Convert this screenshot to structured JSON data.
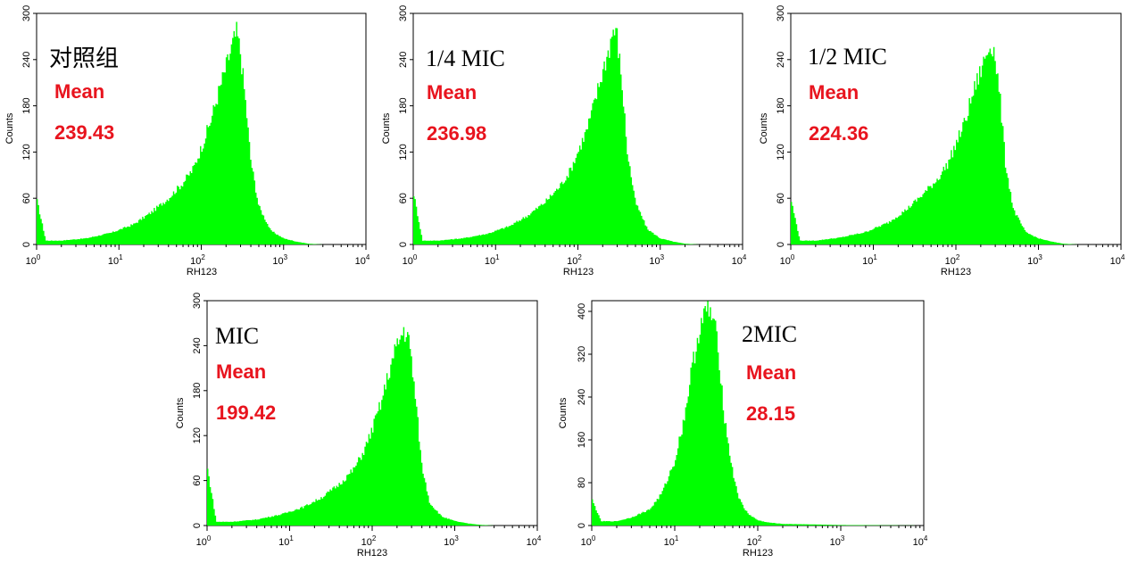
{
  "chart_data": [
    {
      "type": "area",
      "title": "",
      "group_label": "对照组",
      "stat_label": "Mean",
      "stat_value": "239.43",
      "xlabel": "RH123",
      "ylabel": "Counts",
      "x_scale": "log",
      "xlim": [
        1,
        10000
      ],
      "ylim": [
        0,
        300
      ],
      "x_ticks": [
        1,
        10,
        100,
        1000,
        10000
      ],
      "x_tick_labels": [
        {
          "base": "10",
          "exp": "0"
        },
        {
          "base": "10",
          "exp": "1"
        },
        {
          "base": "10",
          "exp": "2"
        },
        {
          "base": "10",
          "exp": "3"
        },
        {
          "base": "10",
          "exp": "4"
        }
      ],
      "y_ticks": [
        "0",
        "60",
        "120",
        "180",
        "240",
        "300"
      ],
      "fill_color": "#00ff00",
      "x": [
        1,
        1.3,
        2,
        4,
        8,
        15,
        25,
        40,
        60,
        80,
        100,
        130,
        160,
        200,
        240,
        270,
        300,
        350,
        400,
        500,
        700,
        1000,
        1400,
        2000,
        3000,
        10000
      ],
      "values": [
        60,
        5,
        5,
        8,
        15,
        26,
        42,
        60,
        80,
        98,
        125,
        160,
        195,
        230,
        260,
        275,
        250,
        180,
        110,
        50,
        18,
        8,
        4,
        1,
        0,
        0
      ]
    },
    {
      "type": "area",
      "title": "",
      "group_label": "1/4 MIC",
      "stat_label": "Mean",
      "stat_value": "236.98",
      "xlabel": "RH123",
      "ylabel": "Counts",
      "x_scale": "log",
      "xlim": [
        1,
        10000
      ],
      "ylim": [
        0,
        300
      ],
      "x_ticks": [
        1,
        10,
        100,
        1000,
        10000
      ],
      "x_tick_labels": [
        {
          "base": "10",
          "exp": "0"
        },
        {
          "base": "10",
          "exp": "1"
        },
        {
          "base": "10",
          "exp": "2"
        },
        {
          "base": "10",
          "exp": "3"
        },
        {
          "base": "10",
          "exp": "4"
        }
      ],
      "y_ticks": [
        "0",
        "60",
        "120",
        "180",
        "240",
        "300"
      ],
      "fill_color": "#00ff00",
      "x": [
        1,
        1.3,
        2,
        4,
        8,
        15,
        25,
        40,
        60,
        80,
        100,
        130,
        160,
        200,
        240,
        270,
        300,
        350,
        400,
        500,
        700,
        1000,
        1400,
        2000,
        3000,
        10000
      ],
      "values": [
        70,
        5,
        5,
        8,
        14,
        24,
        38,
        55,
        75,
        95,
        120,
        150,
        185,
        225,
        255,
        280,
        270,
        200,
        120,
        55,
        20,
        8,
        4,
        1,
        0,
        0
      ]
    },
    {
      "type": "area",
      "title": "",
      "group_label": "1/2 MIC",
      "stat_label": "Mean",
      "stat_value": "224.36",
      "xlabel": "RH123",
      "ylabel": "Counts",
      "x_scale": "log",
      "xlim": [
        1,
        10000
      ],
      "ylim": [
        0,
        300
      ],
      "x_ticks": [
        1,
        10,
        100,
        1000,
        10000
      ],
      "x_tick_labels": [
        {
          "base": "10",
          "exp": "0"
        },
        {
          "base": "10",
          "exp": "1"
        },
        {
          "base": "10",
          "exp": "2"
        },
        {
          "base": "10",
          "exp": "3"
        },
        {
          "base": "10",
          "exp": "4"
        }
      ],
      "y_ticks": [
        "0",
        "60",
        "120",
        "180",
        "240",
        "300"
      ],
      "fill_color": "#00ff00",
      "x": [
        1,
        1.3,
        2,
        4,
        8,
        15,
        25,
        40,
        60,
        80,
        100,
        130,
        160,
        200,
        240,
        270,
        300,
        350,
        400,
        500,
        700,
        1000,
        1400,
        2000,
        3000,
        10000
      ],
      "values": [
        60,
        5,
        5,
        9,
        16,
        28,
        45,
        65,
        85,
        105,
        130,
        160,
        195,
        225,
        250,
        262,
        245,
        180,
        105,
        45,
        16,
        8,
        4,
        1,
        0,
        0
      ]
    },
    {
      "type": "area",
      "title": "",
      "group_label": "MIC",
      "stat_label": "Mean",
      "stat_value": "199.42",
      "xlabel": "RH123",
      "ylabel": "Counts",
      "x_scale": "log",
      "xlim": [
        1,
        10000
      ],
      "ylim": [
        0,
        300
      ],
      "x_ticks": [
        1,
        10,
        100,
        1000,
        10000
      ],
      "x_tick_labels": [
        {
          "base": "10",
          "exp": "0"
        },
        {
          "base": "10",
          "exp": "1"
        },
        {
          "base": "10",
          "exp": "2"
        },
        {
          "base": "10",
          "exp": "3"
        },
        {
          "base": "10",
          "exp": "4"
        }
      ],
      "y_ticks": [
        "0",
        "60",
        "120",
        "180",
        "240",
        "300"
      ],
      "fill_color": "#00ff00",
      "x": [
        1,
        1.3,
        2,
        4,
        8,
        15,
        25,
        40,
        60,
        80,
        100,
        130,
        160,
        200,
        240,
        270,
        300,
        350,
        400,
        500,
        700,
        1000,
        1400,
        2000,
        3000,
        10000
      ],
      "values": [
        80,
        5,
        5,
        8,
        15,
        25,
        38,
        55,
        75,
        100,
        128,
        165,
        205,
        240,
        260,
        255,
        220,
        150,
        80,
        30,
        12,
        6,
        3,
        1,
        0,
        0
      ]
    },
    {
      "type": "area",
      "title": "",
      "group_label": "2MIC",
      "stat_label": "Mean",
      "stat_value": "28.15",
      "xlabel": "RH123",
      "ylabel": "Counts",
      "x_scale": "log",
      "xlim": [
        1,
        10000
      ],
      "ylim": [
        0,
        420
      ],
      "x_ticks": [
        1,
        10,
        100,
        1000,
        10000
      ],
      "x_tick_labels": [
        {
          "base": "10",
          "exp": "0"
        },
        {
          "base": "10",
          "exp": "1"
        },
        {
          "base": "10",
          "exp": "2"
        },
        {
          "base": "10",
          "exp": "3"
        },
        {
          "base": "10",
          "exp": "4"
        }
      ],
      "y_ticks": [
        "0",
        "80",
        "160",
        "240",
        "320",
        "400"
      ],
      "fill_color": "#00ff00",
      "x": [
        1,
        1.3,
        2,
        3,
        5,
        7,
        10,
        13,
        16,
        20,
        25,
        30,
        35,
        40,
        50,
        60,
        70,
        80,
        100,
        130,
        200,
        500,
        1000,
        10000
      ],
      "values": [
        50,
        8,
        8,
        15,
        30,
        60,
        120,
        200,
        290,
        370,
        405,
        380,
        300,
        200,
        100,
        50,
        30,
        20,
        10,
        6,
        3,
        2,
        1,
        0
      ]
    }
  ]
}
